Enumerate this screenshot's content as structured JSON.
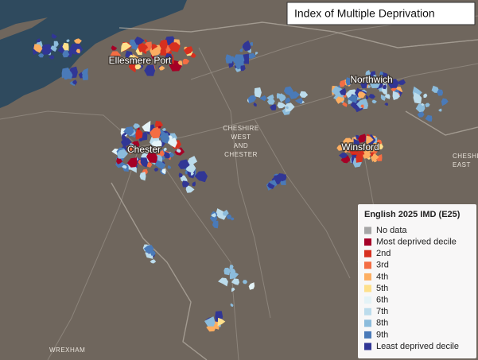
{
  "title": "Index of Multiple Deprivation",
  "places": [
    "Ellesmere Port",
    "Northwich",
    "Chester",
    "Winsford"
  ],
  "regions": [
    [
      "CHESHIRE",
      "WEST",
      "AND",
      "CHESTER"
    ],
    [
      "CHESHI",
      "EAST"
    ],
    [
      "WREXHAM"
    ]
  ],
  "legend": {
    "title": "English 2025 IMD (E25)",
    "items": [
      {
        "label": "No data",
        "color": "#a6a6a6"
      },
      {
        "label": "Most deprived decile",
        "color": "#a50026"
      },
      {
        "label": "2nd",
        "color": "#d7301f"
      },
      {
        "label": "3rd",
        "color": "#f46d43"
      },
      {
        "label": "4th",
        "color": "#fdae61"
      },
      {
        "label": "5th",
        "color": "#fee08b"
      },
      {
        "label": "6th",
        "color": "#e4f3f7"
      },
      {
        "label": "7th",
        "color": "#bcdcec"
      },
      {
        "label": "8th",
        "color": "#8cbcdc"
      },
      {
        "label": "9th",
        "color": "#4a7ab8"
      },
      {
        "label": "Least deprived decile",
        "color": "#313695"
      }
    ]
  }
}
